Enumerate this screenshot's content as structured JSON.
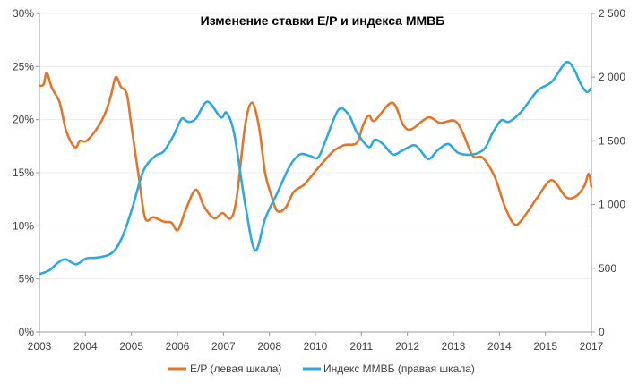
{
  "chart_data": {
    "type": "line",
    "title": "Изменение ставки E/P и индекса ММВБ",
    "x_tick_labels": [
      "2003",
      "2004",
      "2005",
      "2006",
      "2007",
      "2008",
      "2010",
      "2011",
      "2012",
      "2013",
      "2014",
      "2015",
      "2017"
    ],
    "left_axis": {
      "ticks": [
        "0%",
        "5%",
        "10%",
        "15%",
        "20%",
        "25%",
        "30%"
      ],
      "range": [
        0,
        30
      ]
    },
    "right_axis": {
      "ticks": [
        "0",
        "500",
        "1 000",
        "1 500",
        "2 000",
        "2 500"
      ],
      "range": [
        0,
        2500
      ]
    },
    "grid": "horizontal",
    "legend_placement": "bottom",
    "series": [
      {
        "name": "E/P (левая шкала)",
        "axis": "left",
        "color": "#E2762A",
        "x": [
          0,
          0.09,
          0.16,
          0.27,
          0.44,
          0.57,
          0.71,
          0.8,
          0.88,
          1.02,
          1.24,
          1.42,
          1.55,
          1.66,
          1.77,
          1.9,
          2.0,
          2.17,
          2.3,
          2.48,
          2.7,
          2.87,
          3.01,
          3.18,
          3.4,
          3.58,
          3.8,
          3.98,
          4.16,
          4.29,
          4.47,
          4.62,
          4.77,
          4.91,
          5.04,
          5.17,
          5.35,
          5.53,
          5.76,
          6.01,
          6.23,
          6.41,
          6.63,
          6.9,
          7.03,
          7.16,
          7.29,
          7.67,
          7.91,
          8.09,
          8.45,
          8.71,
          9.02,
          9.2,
          9.42,
          9.64,
          9.9,
          10.12,
          10.35,
          10.61,
          10.83,
          11.14,
          11.45,
          11.67,
          11.85,
          11.94,
          12.0
        ],
        "y": [
          23.2,
          23.3,
          24.4,
          23.0,
          21.6,
          19.1,
          17.7,
          17.4,
          18.0,
          18.0,
          19.1,
          20.5,
          22.2,
          24.0,
          23.1,
          22.4,
          19.4,
          14.3,
          10.7,
          10.8,
          10.4,
          10.3,
          9.6,
          11.5,
          13.4,
          11.8,
          10.7,
          11.2,
          10.7,
          12.7,
          19.4,
          21.6,
          19.4,
          14.9,
          12.9,
          11.4,
          11.7,
          13.2,
          13.9,
          15.2,
          16.3,
          17.1,
          17.6,
          17.8,
          19.4,
          20.4,
          19.9,
          21.6,
          19.5,
          19.1,
          20.2,
          19.7,
          19.9,
          18.8,
          16.6,
          16.4,
          14.6,
          11.8,
          10.1,
          11.3,
          12.7,
          14.3,
          12.7,
          12.8,
          13.8,
          14.9,
          13.6
        ]
      },
      {
        "name": "Индекс ММВБ (правая шкала)",
        "axis": "right",
        "color": "#2EA9DF",
        "x": [
          0,
          0.22,
          0.4,
          0.57,
          0.8,
          1.02,
          1.28,
          1.59,
          1.81,
          2.03,
          2.26,
          2.52,
          2.7,
          2.92,
          3.09,
          3.23,
          3.4,
          3.65,
          3.94,
          4.07,
          4.24,
          4.47,
          4.69,
          4.91,
          5.17,
          5.44,
          5.66,
          5.88,
          6.06,
          6.23,
          6.5,
          6.72,
          6.9,
          7.16,
          7.29,
          7.47,
          7.69,
          7.91,
          8.18,
          8.45,
          8.66,
          8.89,
          9.11,
          9.42,
          9.68,
          9.86,
          10.04,
          10.21,
          10.48,
          10.83,
          11.14,
          11.45,
          11.63,
          11.76,
          11.9,
          12.0
        ],
        "y": [
          454,
          485,
          543,
          571,
          531,
          578,
          585,
          624,
          753,
          986,
          1265,
          1382,
          1417,
          1545,
          1673,
          1650,
          1673,
          1808,
          1685,
          1720,
          1545,
          1009,
          641,
          892,
          1090,
          1300,
          1393,
          1382,
          1370,
          1510,
          1743,
          1708,
          1568,
          1452,
          1510,
          1475,
          1393,
          1428,
          1463,
          1358,
          1428,
          1475,
          1405,
          1393,
          1440,
          1568,
          1661,
          1650,
          1731,
          1894,
          1964,
          2116,
          2057,
          1952,
          1883,
          1918
        ]
      }
    ]
  }
}
